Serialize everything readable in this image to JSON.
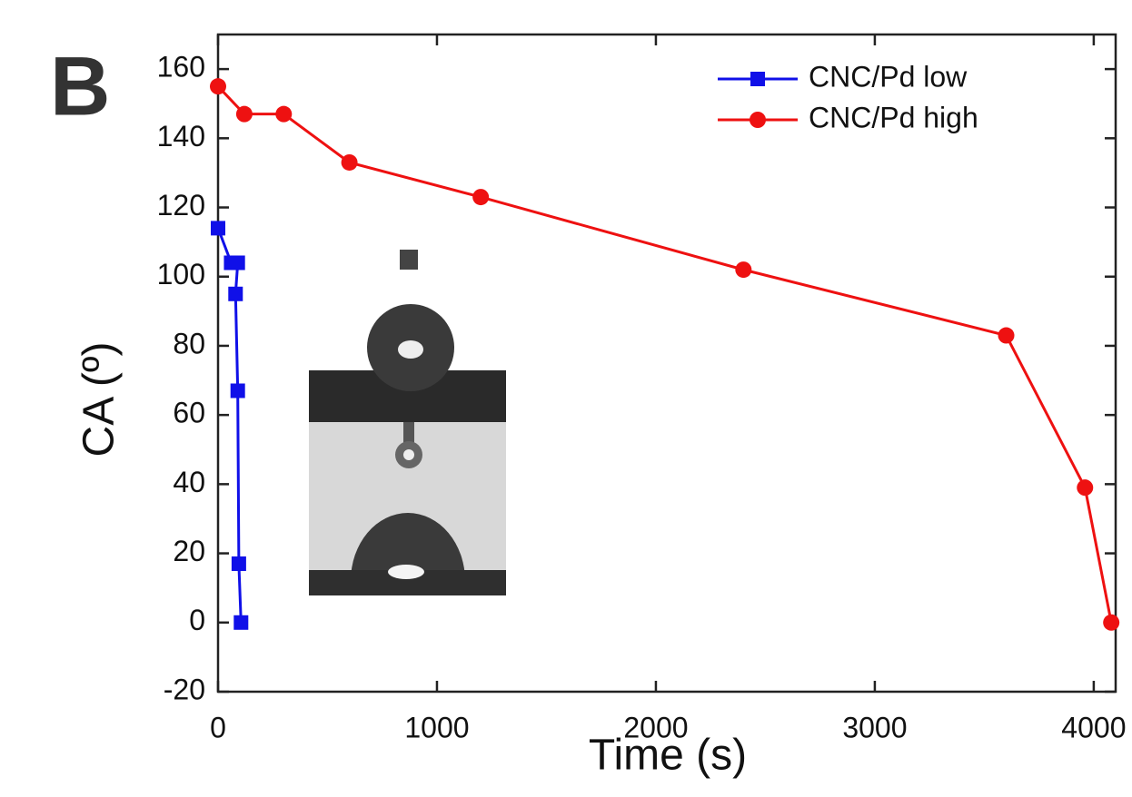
{
  "chart_data": {
    "type": "line",
    "panel_label": "B",
    "x_label": "Time (s)",
    "y_label": "CA (º)",
    "xlim": [
      0,
      4100
    ],
    "ylim": [
      -20,
      170
    ],
    "xticks": [
      0,
      1000,
      2000,
      3000,
      4000
    ],
    "yticks": [
      -20,
      0,
      20,
      40,
      60,
      80,
      100,
      120,
      140,
      160
    ],
    "legend_position": "upper right",
    "series": [
      {
        "name": "CNC/Pd low",
        "color": "#1010e8",
        "marker": "square",
        "x": [
          0,
          60,
          90,
          80,
          90,
          95,
          105
        ],
        "values": [
          114,
          104,
          104,
          95,
          67,
          17,
          0
        ]
      },
      {
        "name": "CNC/Pd high",
        "color": "#ee1111",
        "marker": "circle",
        "x": [
          0,
          120,
          300,
          600,
          1200,
          2400,
          3600,
          3960,
          4080
        ],
        "values": [
          155,
          147,
          147,
          133,
          123,
          102,
          83,
          39,
          0
        ]
      }
    ]
  }
}
